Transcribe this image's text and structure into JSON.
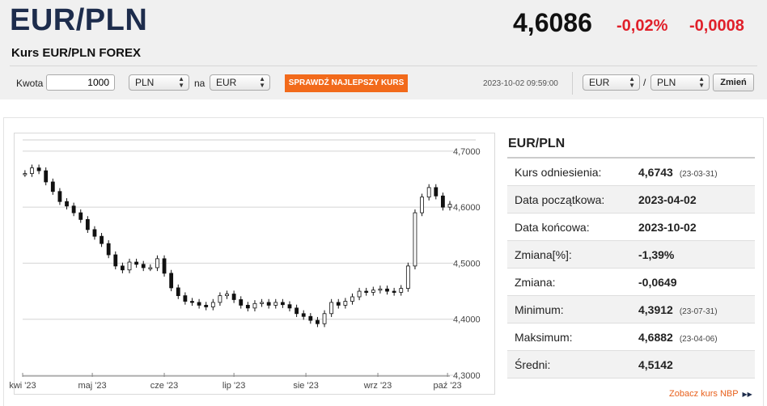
{
  "header": {
    "pair": "EUR/PLN",
    "subtitle": "Kurs EUR/PLN FOREX",
    "rate": "4,6086",
    "change_pct": "-0,02%",
    "change_abs": "-0,0008",
    "change_color": "#e0202a"
  },
  "converter": {
    "amount_label": "Kwota",
    "amount_value": "1000",
    "from_currency": "PLN",
    "to_label": "na",
    "to_currency": "EUR",
    "best_rate_button": "SPRAWDŹ NAJLEPSZY KURS",
    "timestamp": "2023-10-02 09:59:00",
    "pair_base": "EUR",
    "pair_sep": "/",
    "pair_quote": "PLN",
    "change_button": "Zmień",
    "accent_color": "#f26a1b"
  },
  "stats": {
    "title": "EUR/PLN",
    "rows": [
      {
        "label": "Kurs odniesienia:",
        "value": "4,6743",
        "date": "(23-03-31)"
      },
      {
        "label": "Data początkowa:",
        "value": "2023-04-02",
        "date": ""
      },
      {
        "label": "Data końcowa:",
        "value": "2023-10-02",
        "date": ""
      },
      {
        "label": "Zmiana[%]:",
        "value": "-1,39%",
        "date": ""
      },
      {
        "label": "Zmiana:",
        "value": "-0,0649",
        "date": ""
      },
      {
        "label": "Minimum:",
        "value": "4,3912",
        "date": "(23-07-31)"
      },
      {
        "label": "Maksimum:",
        "value": "4,6882",
        "date": "(23-04-06)"
      },
      {
        "label": "Średni:",
        "value": "4,5142",
        "date": ""
      }
    ],
    "nbp_link": "Zobacz kurs NBP"
  },
  "chart_data": {
    "type": "line",
    "style": "candlestick",
    "ylim": [
      4.3,
      4.72
    ],
    "y_ticks": [
      "4,3000",
      "4,4000",
      "4,5000",
      "4,6000",
      "4,7000"
    ],
    "y_tick_values": [
      4.3,
      4.4,
      4.5,
      4.6,
      4.7
    ],
    "x_labels": [
      "kwi '23",
      "maj '23",
      "cze '23",
      "lip '23",
      "sie '23",
      "wrz '23",
      "paź '23"
    ],
    "x_label_days": [
      0,
      30,
      61,
      91,
      122,
      153,
      183
    ],
    "x_range_days": [
      0,
      184
    ],
    "grid": true,
    "series": [
      {
        "values": [
          [
            1,
            4.66
          ],
          [
            4,
            4.67
          ],
          [
            7,
            4.665
          ],
          [
            10,
            4.645
          ],
          [
            13,
            4.628
          ],
          [
            16,
            4.61
          ],
          [
            19,
            4.602
          ],
          [
            22,
            4.59
          ],
          [
            25,
            4.578
          ],
          [
            28,
            4.56
          ],
          [
            31,
            4.548
          ],
          [
            34,
            4.535
          ],
          [
            37,
            4.515
          ],
          [
            40,
            4.495
          ],
          [
            43,
            4.488
          ],
          [
            46,
            4.502
          ],
          [
            49,
            4.498
          ],
          [
            52,
            4.492
          ],
          [
            55,
            4.492
          ],
          [
            58,
            4.508
          ],
          [
            61,
            4.482
          ],
          [
            64,
            4.456
          ],
          [
            67,
            4.442
          ],
          [
            70,
            4.432
          ],
          [
            73,
            4.43
          ],
          [
            76,
            4.425
          ],
          [
            79,
            4.422
          ],
          [
            82,
            4.43
          ],
          [
            85,
            4.442
          ],
          [
            88,
            4.445
          ],
          [
            91,
            4.435
          ],
          [
            94,
            4.425
          ],
          [
            97,
            4.42
          ],
          [
            100,
            4.428
          ],
          [
            103,
            4.43
          ],
          [
            106,
            4.425
          ],
          [
            109,
            4.43
          ],
          [
            112,
            4.426
          ],
          [
            115,
            4.42
          ],
          [
            118,
            4.41
          ],
          [
            121,
            4.405
          ],
          [
            124,
            4.398
          ],
          [
            127,
            4.392
          ],
          [
            130,
            4.41
          ],
          [
            133,
            4.43
          ],
          [
            136,
            4.425
          ],
          [
            139,
            4.432
          ],
          [
            142,
            4.44
          ],
          [
            145,
            4.45
          ],
          [
            148,
            4.448
          ],
          [
            151,
            4.452
          ],
          [
            154,
            4.454
          ],
          [
            157,
            4.45
          ],
          [
            160,
            4.448
          ],
          [
            163,
            4.455
          ],
          [
            166,
            4.495
          ],
          [
            169,
            4.59
          ],
          [
            172,
            4.618
          ],
          [
            175,
            4.635
          ],
          [
            178,
            4.62
          ],
          [
            181,
            4.6
          ],
          [
            184,
            4.605
          ]
        ]
      }
    ]
  }
}
